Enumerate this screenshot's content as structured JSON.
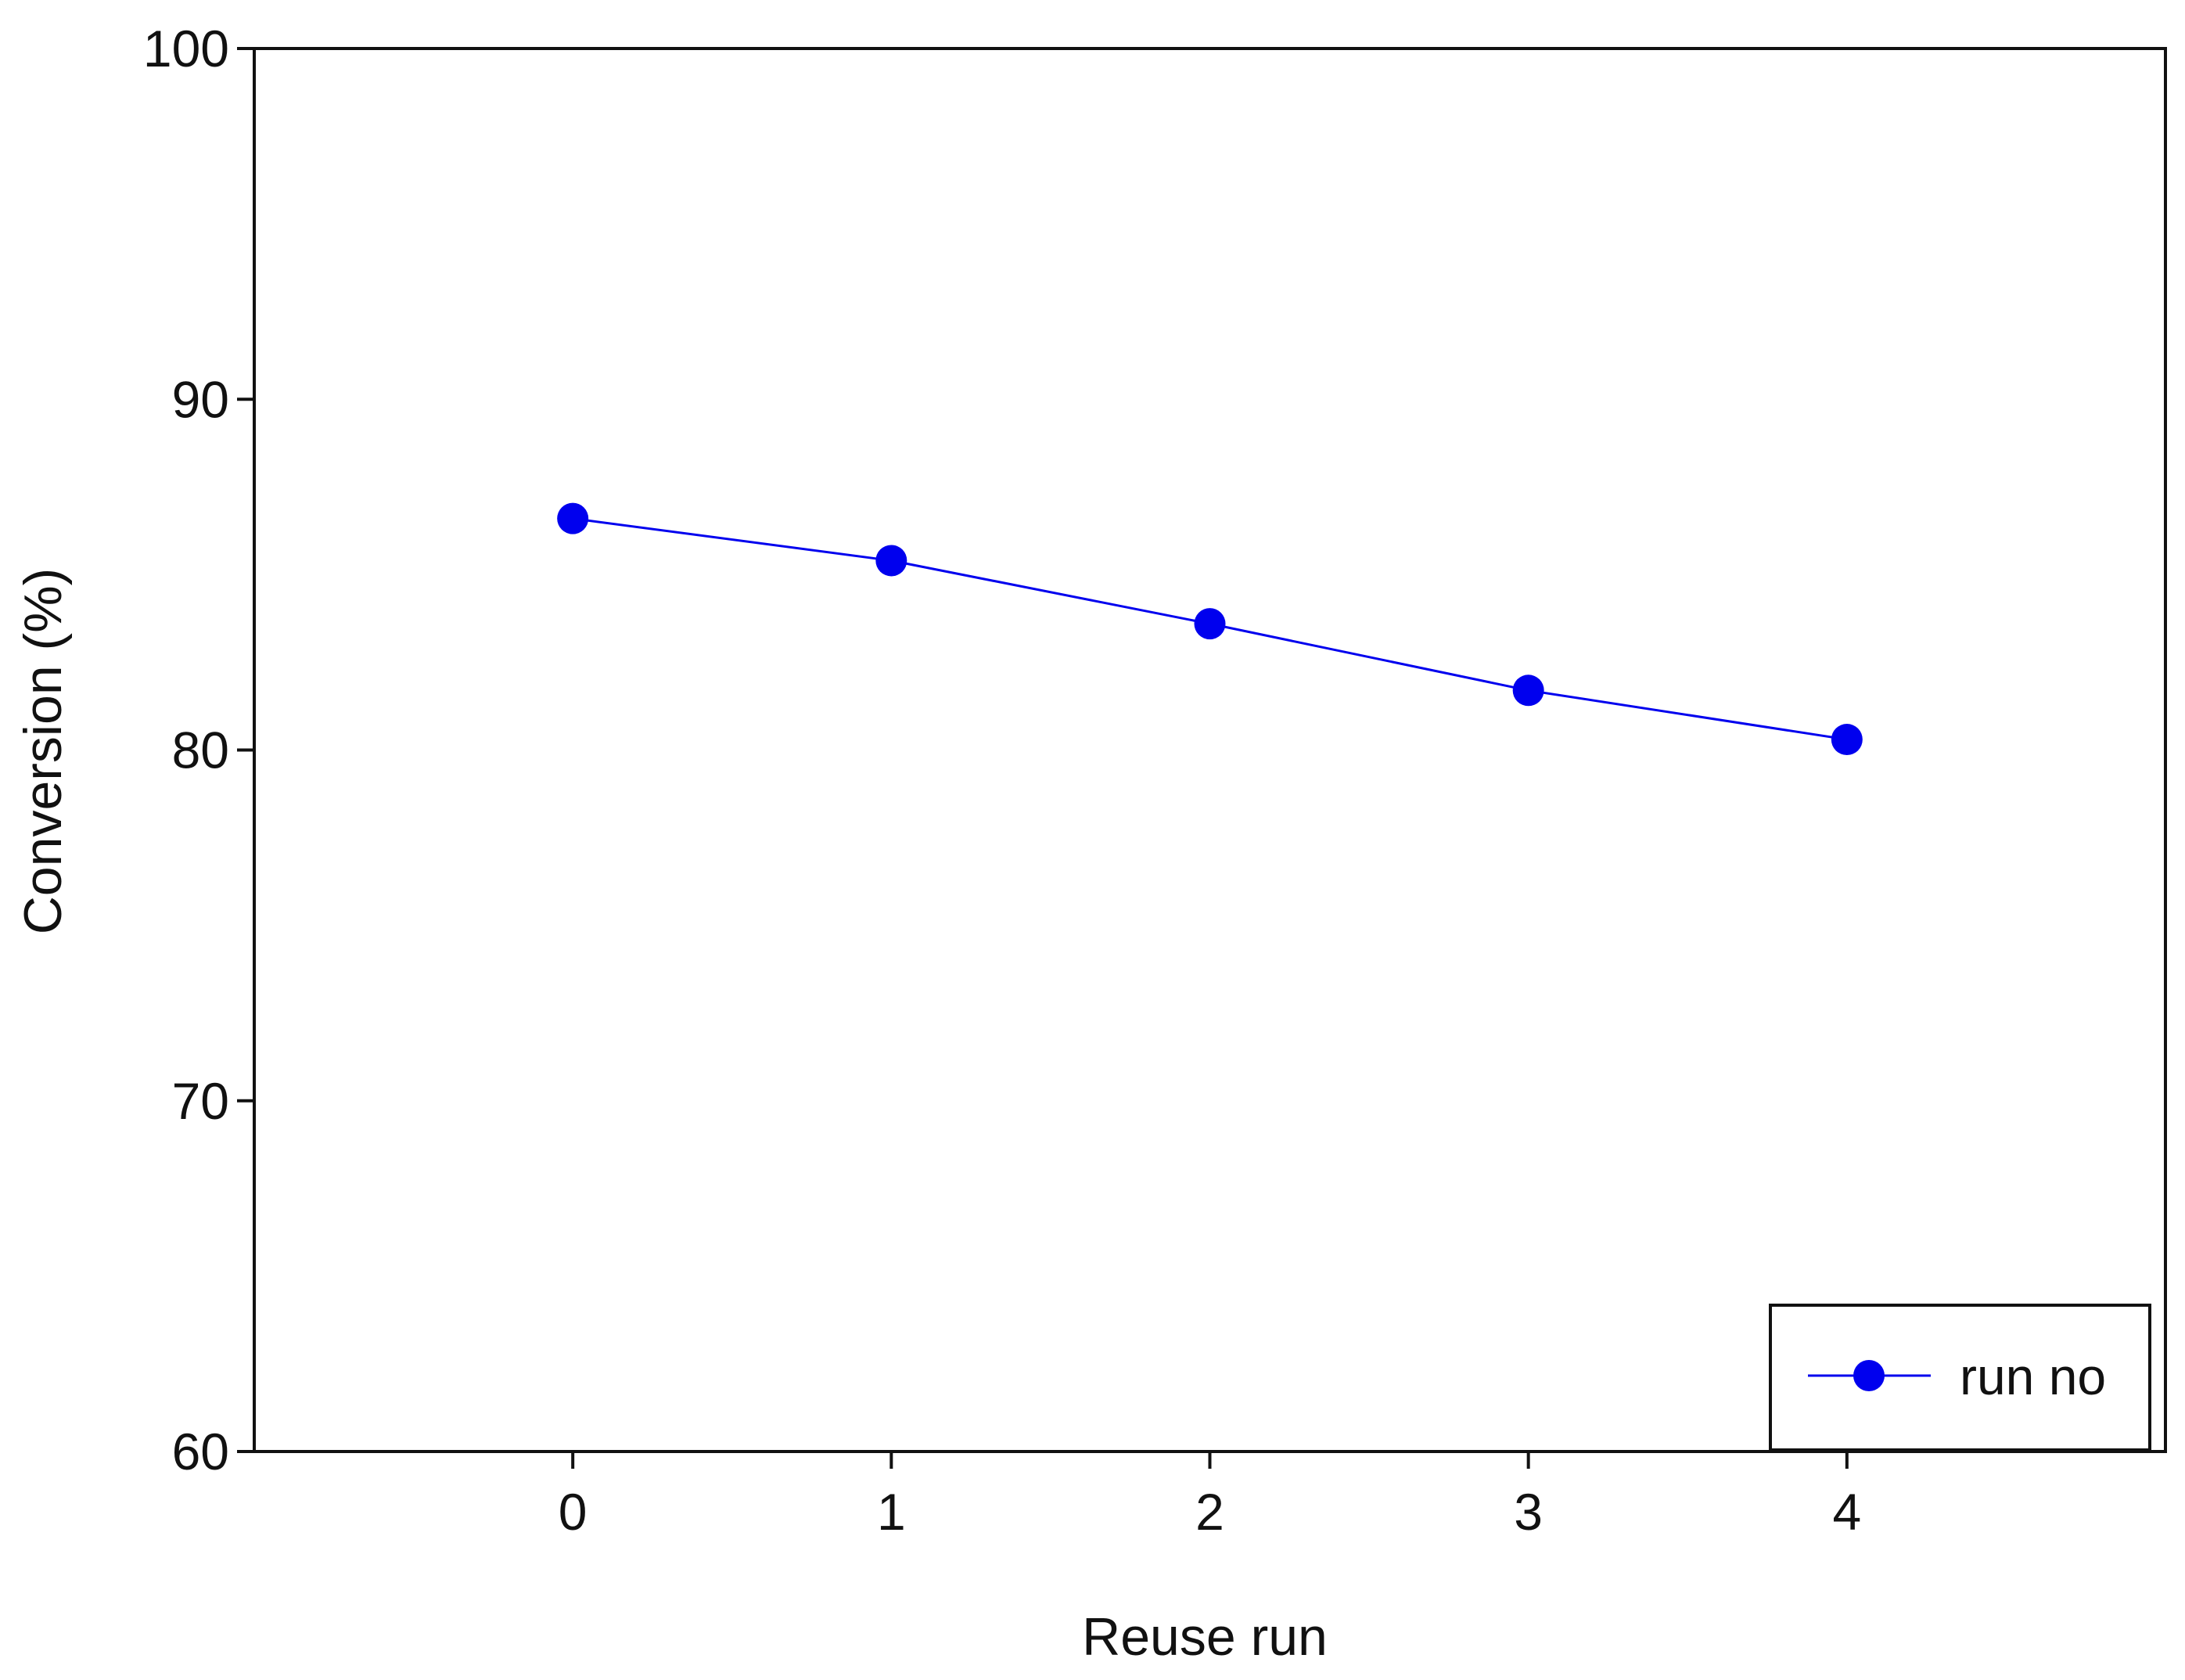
{
  "chart_data": {
    "type": "line",
    "title": "",
    "xlabel": "Reuse run",
    "ylabel": "Conversion (%)",
    "x": [
      0,
      1,
      2,
      3,
      4
    ],
    "xticks": [
      "0",
      "1",
      "2",
      "3",
      "4"
    ],
    "yticks": [
      "60",
      "70",
      "80",
      "90",
      "100"
    ],
    "xlim": [
      -1,
      5.0
    ],
    "ylim": [
      60,
      100
    ],
    "grid": false,
    "legend_position": "bottom-right",
    "series": [
      {
        "name": "run no",
        "values": [
          86.6,
          85.4,
          83.6,
          81.7,
          80.3
        ],
        "color": "#0000ee",
        "marker": "circle"
      }
    ]
  }
}
